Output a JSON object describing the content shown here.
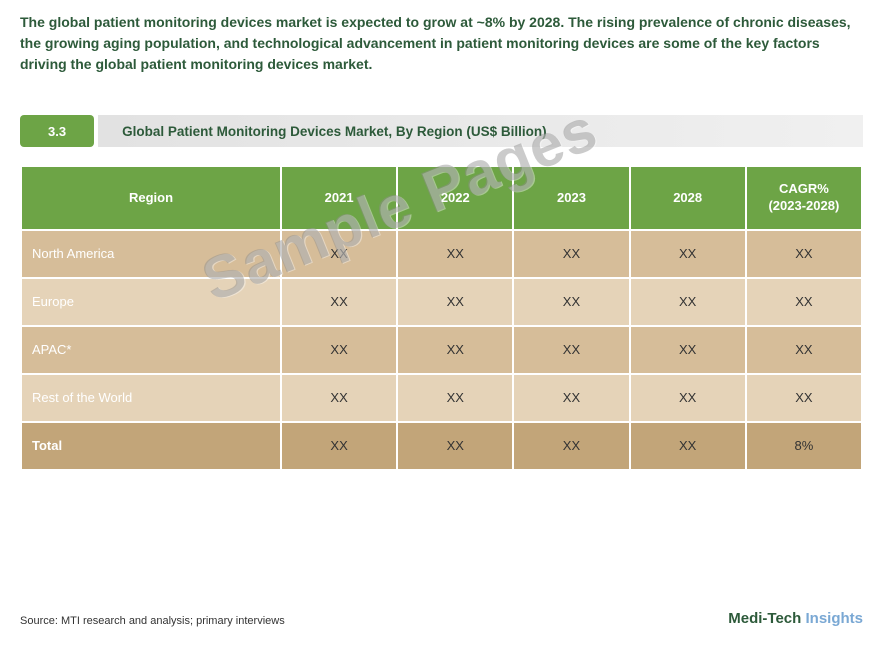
{
  "intro_text": "The global patient monitoring devices market is expected to grow at ~8% by 2028. The rising prevalence of chronic diseases, the growing aging population, and technological advancement in patient monitoring devices are some of the key factors driving the global patient monitoring devices market.",
  "section": {
    "number": "3.3",
    "title": "Global Patient Monitoring Devices Market, By Region (US$ Billion)"
  },
  "table": {
    "columns": [
      "Region",
      "2021",
      "2022",
      "2023",
      "2028",
      "CAGR%\n(2023-2028)"
    ],
    "col_widths": [
      "260px",
      "auto",
      "auto",
      "auto",
      "auto",
      "auto"
    ],
    "header_bg": "#6da446",
    "header_fg": "#ffffff",
    "header_fontsize": 13,
    "row_odd_bg": "#d6bd99",
    "row_even_bg": "#e5d3b8",
    "total_bg": "#c2a579",
    "region_text_color": "#ffffff",
    "value_text_color": "#333333",
    "rows": [
      {
        "region": "North America",
        "v2021": "XX",
        "v2022": "XX",
        "v2023": "XX",
        "v2028": "XX",
        "cagr": "XX"
      },
      {
        "region": "Europe",
        "v2021": "XX",
        "v2022": "XX",
        "v2023": "XX",
        "v2028": "XX",
        "cagr": "XX"
      },
      {
        "region": "APAC*",
        "v2021": "XX",
        "v2022": "XX",
        "v2023": "XX",
        "v2028": "XX",
        "cagr": "XX"
      },
      {
        "region": "Rest of the World",
        "v2021": "XX",
        "v2022": "XX",
        "v2023": "XX",
        "v2028": "XX",
        "cagr": "XX"
      }
    ],
    "total": {
      "region": "Total",
      "v2021": "XX",
      "v2022": "XX",
      "v2023": "XX",
      "v2028": "XX",
      "cagr": "8%"
    }
  },
  "source_note": "Source: MTI research and analysis; primary interviews",
  "brand": {
    "part1": "Medi-Tech ",
    "part2": "Insights"
  },
  "watermark": "Sample Pages",
  "colors": {
    "accent_green": "#6da446",
    "dark_green": "#2d5a3a",
    "light_blue": "#7aa8d4",
    "background": "#ffffff"
  }
}
